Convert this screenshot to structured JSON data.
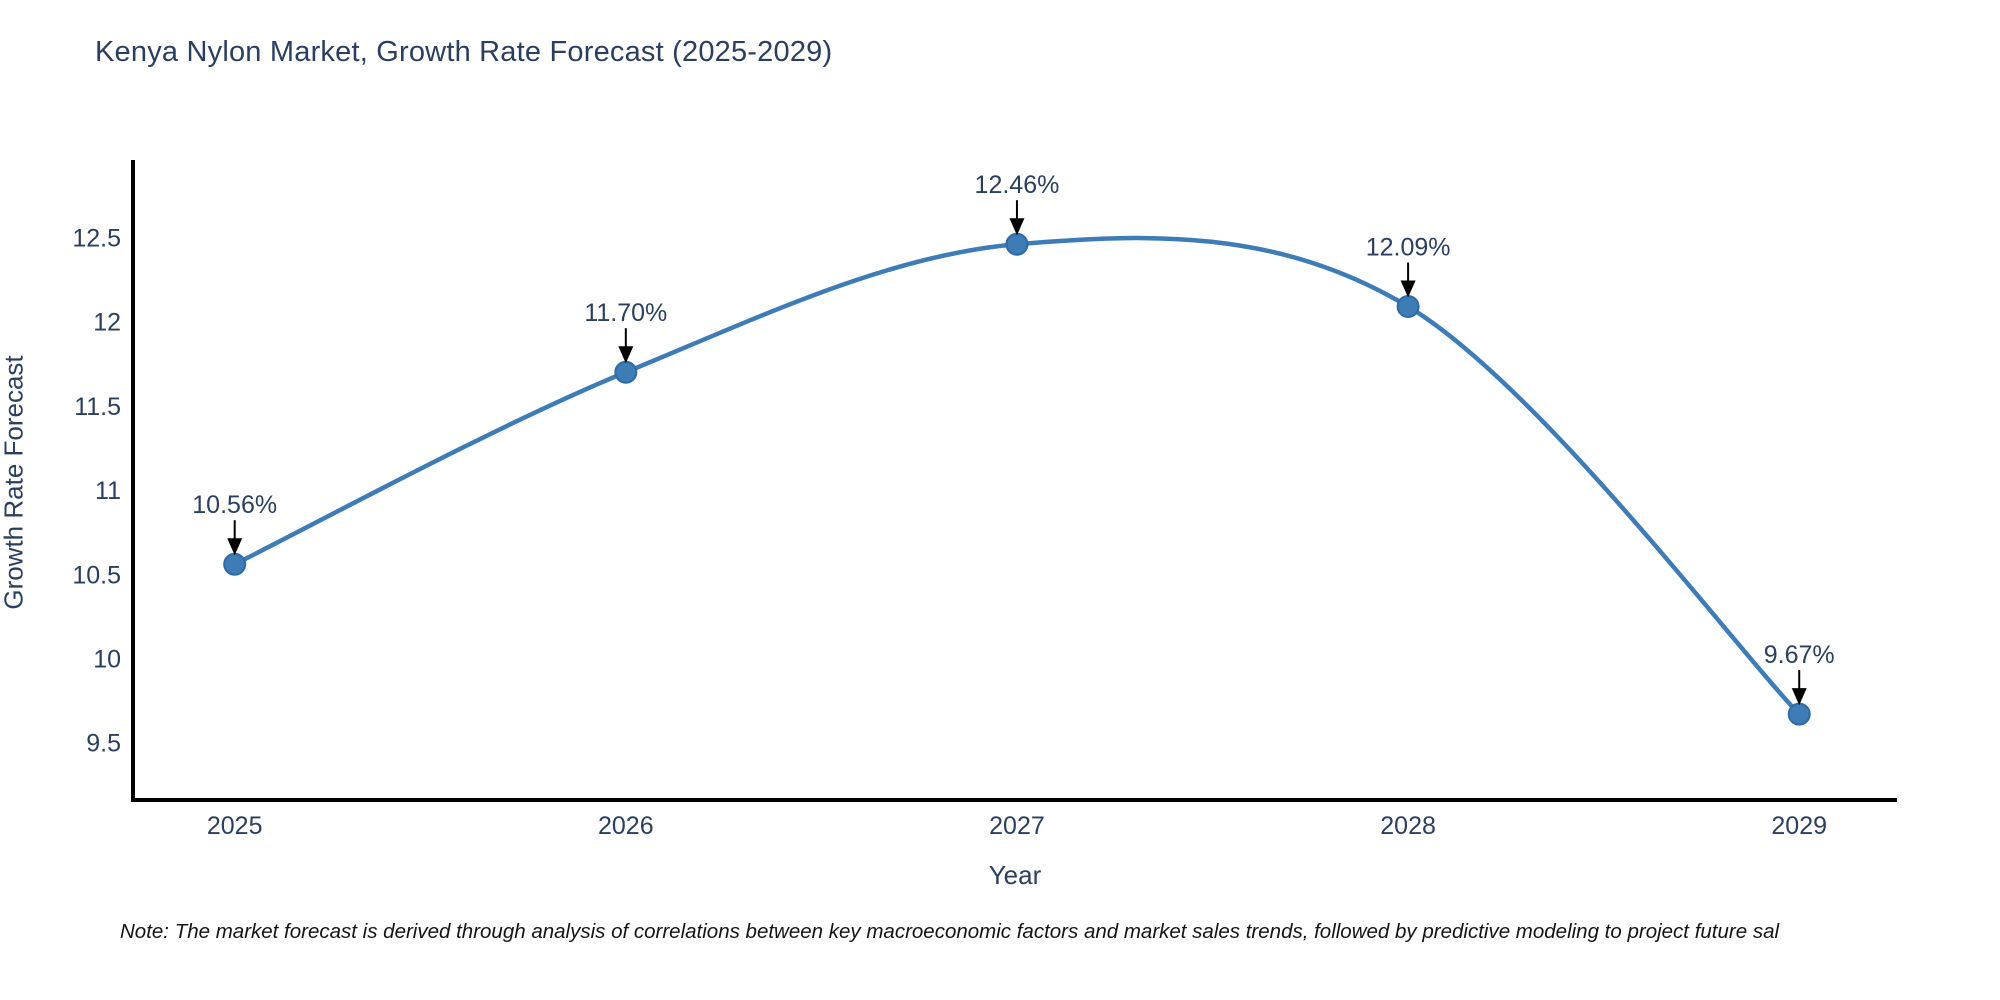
{
  "chart_data": {
    "type": "line",
    "title": "Kenya Nylon Market, Growth Rate Forecast (2025-2029)",
    "xlabel": "Year",
    "ylabel": "Growth Rate Forecast",
    "x": [
      2025,
      2026,
      2027,
      2028,
      2029
    ],
    "values": [
      10.56,
      11.7,
      12.46,
      12.09,
      9.67
    ],
    "point_labels": [
      "10.56%",
      "11.70%",
      "12.46%",
      "12.09%",
      "9.67%"
    ],
    "xtick_labels": [
      "2025",
      "2026",
      "2027",
      "2028",
      "2029"
    ],
    "yticks": [
      9.5,
      10,
      10.5,
      11,
      11.5,
      12,
      12.5
    ],
    "ytick_labels": [
      "9.5",
      "10",
      "10.5",
      "11",
      "11.5",
      "12",
      "12.5"
    ],
    "xlim": [
      2024.74,
      2029.25
    ],
    "ylim": [
      9.16,
      12.96
    ],
    "grid": false,
    "legend": false,
    "line_shape": "spline",
    "colors": {
      "line": "#3d7cb6",
      "marker_fill": "#3e7cb5",
      "marker_edge": "#2e6ba5",
      "axis_line": "#000000",
      "tick_text": "#2a3f5f",
      "annotation_text": "#2a3f5f",
      "annotation_arrow": "#000000",
      "background": "#ffffff"
    },
    "note": "Note: The market forecast is derived through analysis of correlations between key macroeconomic factors and market sales trends, followed by predictive modeling to project future sal"
  }
}
